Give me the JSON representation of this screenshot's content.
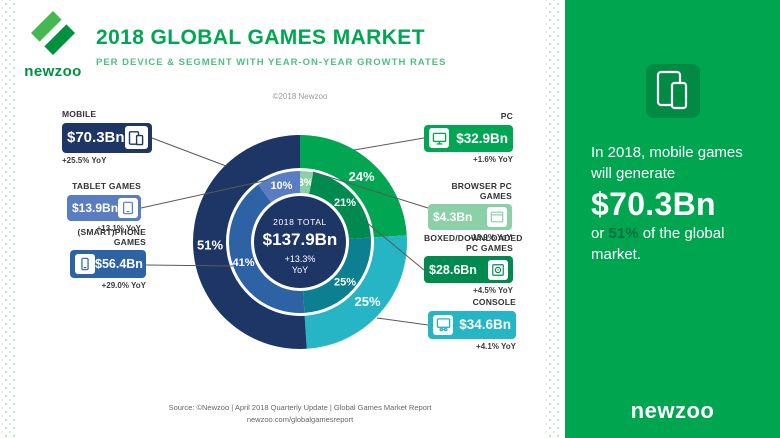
{
  "header": {
    "logo_text": "newzoo",
    "title": "2018 GLOBAL GAMES MARKET",
    "subtitle": "PER DEVICE & SEGMENT WITH YEAR-ON-YEAR GROWTH RATES",
    "copyright": "©2018 Newzoo"
  },
  "chart_data": {
    "type": "pie",
    "subtype": "double-donut",
    "title": "2018 Global Games Market per Device & Segment with Year-on-Year Growth Rates",
    "legend_position": "callouts-around-chart",
    "center_color": "#1e3666",
    "total": {
      "label": "2018 TOTAL",
      "value": "$137.9Bn",
      "growth": "+13.3%",
      "growth_suffix": "YoY",
      "value_usd_bn": 137.9
    },
    "outer_ring": [
      {
        "label": "PC",
        "pct": 24,
        "value_usd_bn": 32.9,
        "yoy": "+1.6%",
        "color": "#00a651"
      },
      {
        "label": "Console",
        "pct": 25,
        "value_usd_bn": 34.6,
        "yoy": "+4.1%",
        "color": "#25b5c5"
      },
      {
        "label": "Mobile",
        "pct": 51,
        "value_usd_bn": 70.3,
        "yoy": "+25.5%",
        "color": "#1e3666"
      }
    ],
    "inner_ring": [
      {
        "label": "Browser PC Games",
        "pct": 3,
        "value_usd_bn": 4.3,
        "yoy": "-13.9%",
        "color": "#8bd0a6"
      },
      {
        "label": "Boxed/Downloaded PC Games",
        "pct": 21,
        "value_usd_bn": 28.6,
        "yoy": "+4.5%",
        "color": "#008a50"
      },
      {
        "label": "Console",
        "pct": 25,
        "value_usd_bn": 34.6,
        "yoy": "+4.1%",
        "color": "#0c7f90"
      },
      {
        "label": "(Smart)phone Games",
        "pct": 41,
        "value_usd_bn": 56.4,
        "yoy": "+29.0%",
        "color": "#2d63a5"
      },
      {
        "label": "Tablet Games",
        "pct": 10,
        "value_usd_bn": 13.9,
        "yoy": "+13.1%",
        "color": "#5a7cc0"
      }
    ]
  },
  "callouts_left": [
    {
      "title": "MOBILE",
      "value": "$70.3Bn",
      "growth": "+25.5% YoY",
      "color": "#1e3666",
      "icon": "mobile-devices-icon"
    },
    {
      "title": "TABLET GAMES",
      "value": "$13.9Bn",
      "growth": "+13.1% YoY",
      "color": "#5a7cc0",
      "icon": "tablet-icon"
    },
    {
      "title": "(SMART)PHONE GAMES",
      "value": "$56.4Bn",
      "growth": "+29.0% YoY",
      "color": "#2d63a5",
      "icon": "smartphone-icon"
    }
  ],
  "callouts_right": [
    {
      "title": "PC",
      "value": "$32.9Bn",
      "growth": "+1.6% YoY",
      "color": "#00a651",
      "icon": "desktop-icon"
    },
    {
      "title": "BROWSER PC GAMES",
      "value": "$4.3Bn",
      "growth": "-13.9% YoY",
      "color": "#8bd0a6",
      "icon": "browser-icon"
    },
    {
      "title": "BOXED/DOWNLOADED PC GAMES",
      "value": "$28.6Bn",
      "growth": "+4.5% YoY",
      "color": "#008a50",
      "icon": "boxed-download-icon"
    },
    {
      "title": "CONSOLE",
      "value": "$34.6Bn",
      "growth": "+4.1% YoY",
      "color": "#25b5c5",
      "icon": "console-icon"
    }
  ],
  "panel": {
    "intro_line1": "In 2018, mobile games",
    "intro_line2": "will generate",
    "value": "$70.3Bn",
    "share_prefix": "or ",
    "share": "51%",
    "share_suffix": " of the global",
    "share_line2": "market.",
    "share_color": "#0a6e3e",
    "background": "#00a550",
    "logo_text": "newzoo",
    "icon": "mobile-devices-icon"
  },
  "footer": {
    "source_line1": "Source: ©Newzoo | April 2018 Quarterly Update | Global Games Market Report",
    "source_line2": "newzoo.com/globalgamesreport"
  }
}
